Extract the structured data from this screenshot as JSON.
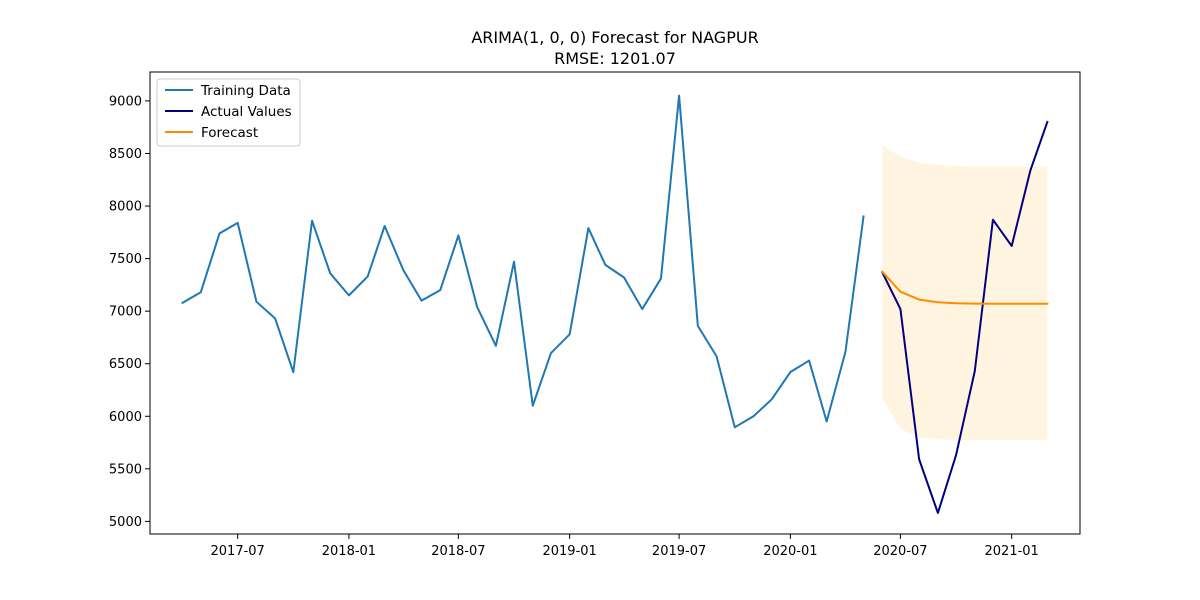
{
  "chart_data": {
    "type": "line",
    "title": "ARIMA(1, 0, 0) Forecast for NAGPUR",
    "subtitle": "RMSE: 1201.07",
    "xlabel": "",
    "ylabel": "",
    "xlim": [
      "2017-02-06",
      "2021-04-24"
    ],
    "ylim": [
      4880,
      9275
    ],
    "x_ticks": [
      "2017-07",
      "2018-01",
      "2018-07",
      "2019-01",
      "2019-07",
      "2020-01",
      "2020-07",
      "2021-01"
    ],
    "y_ticks": [
      5000,
      5500,
      6000,
      6500,
      7000,
      7500,
      8000,
      8500,
      9000
    ],
    "grid": false,
    "legend_position": "top-left",
    "series": [
      {
        "name": "Training Data",
        "color": "#1f77b4",
        "x": [
          "2017-04",
          "2017-05",
          "2017-06",
          "2017-07",
          "2017-08",
          "2017-09",
          "2017-10",
          "2017-11",
          "2017-12",
          "2018-01",
          "2018-02",
          "2018-03",
          "2018-04",
          "2018-05",
          "2018-06",
          "2018-07",
          "2018-08",
          "2018-09",
          "2018-10",
          "2018-11",
          "2018-12",
          "2019-01",
          "2019-02",
          "2019-03",
          "2019-04",
          "2019-05",
          "2019-06",
          "2019-07",
          "2019-08",
          "2019-09",
          "2019-10",
          "2019-11",
          "2019-12",
          "2020-01",
          "2020-02",
          "2020-03",
          "2020-04",
          "2020-05"
        ],
        "values": [
          7080,
          7180,
          7740,
          7840,
          7090,
          6930,
          6420,
          7860,
          7360,
          7150,
          7330,
          7810,
          7390,
          7100,
          7200,
          7720,
          7040,
          6670,
          7470,
          6100,
          6600,
          6780,
          7790,
          7440,
          7320,
          7020,
          7310,
          9050,
          6860,
          6570,
          5895,
          6000,
          6160,
          6420,
          6530,
          5950,
          6610,
          7900
        ]
      },
      {
        "name": "Actual Values",
        "color": "#000080",
        "x": [
          "2020-06",
          "2020-07",
          "2020-08",
          "2020-09",
          "2020-10",
          "2020-11",
          "2020-12",
          "2021-01",
          "2021-02",
          "2021-03"
        ],
        "values": [
          7370,
          7020,
          5590,
          5080,
          5630,
          6430,
          7870,
          7620,
          8340,
          8800
        ]
      },
      {
        "name": "Forecast",
        "color": "#ff8c00",
        "x": [
          "2020-06",
          "2020-07",
          "2020-08",
          "2020-09",
          "2020-10",
          "2020-11",
          "2020-12",
          "2021-01",
          "2021-02",
          "2021-03"
        ],
        "values": [
          7375,
          7185,
          7110,
          7085,
          7075,
          7072,
          7070,
          7070,
          7070,
          7070
        ]
      }
    ],
    "confidence_band": {
      "color": "#ffa500",
      "opacity": 0.12,
      "x": [
        "2020-06",
        "2020-07",
        "2020-08",
        "2020-09",
        "2020-10",
        "2020-11",
        "2020-12",
        "2021-01",
        "2021-02",
        "2021-03"
      ],
      "lower": [
        6170,
        5880,
        5800,
        5780,
        5775,
        5775,
        5775,
        5775,
        5775,
        5775
      ],
      "upper": [
        8580,
        8470,
        8410,
        8390,
        8380,
        8375,
        8375,
        8375,
        8375,
        8375
      ]
    }
  }
}
